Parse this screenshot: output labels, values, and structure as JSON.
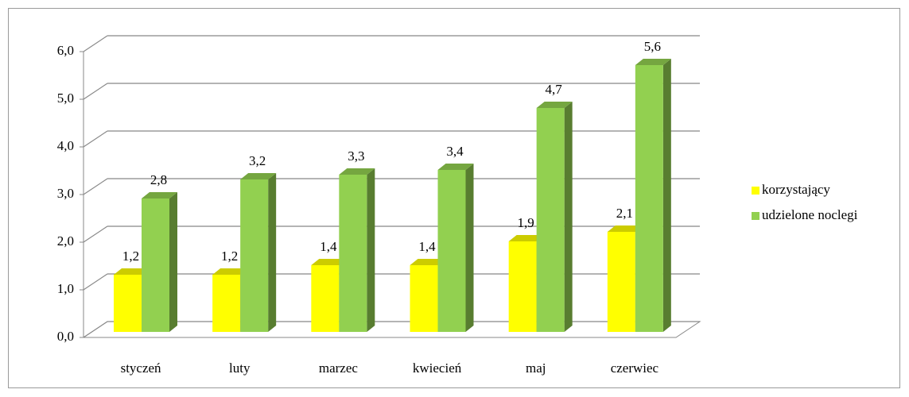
{
  "chart_data": {
    "type": "bar3d",
    "categories": [
      "styczeń",
      "luty",
      "marzec",
      "kwiecień",
      "maj",
      "czerwiec"
    ],
    "series": [
      {
        "name": "korzystający",
        "color": "#ffff00",
        "values": [
          1.2,
          1.2,
          1.4,
          1.4,
          1.9,
          2.1
        ],
        "value_labels": [
          "1,2",
          "1,2",
          "1,4",
          "1,4",
          "1,9",
          "2,1"
        ]
      },
      {
        "name": "udzielone noclegi",
        "color": "#92d050",
        "values": [
          2.8,
          3.2,
          3.3,
          3.4,
          4.7,
          5.6
        ],
        "value_labels": [
          "2,8",
          "3,2",
          "3,3",
          "3,4",
          "4,7",
          "5,6"
        ]
      }
    ],
    "ylim": [
      0,
      6
    ],
    "yticks": [
      {
        "value": 0,
        "label": "0,0"
      },
      {
        "value": 1,
        "label": "1,0"
      },
      {
        "value": 2,
        "label": "2,0"
      },
      {
        "value": 3,
        "label": "3,0"
      },
      {
        "value": 4,
        "label": "4,0"
      },
      {
        "value": 5,
        "label": "5,0"
      },
      {
        "value": 6,
        "label": "6,0"
      }
    ],
    "grid": true,
    "legend": "right"
  }
}
